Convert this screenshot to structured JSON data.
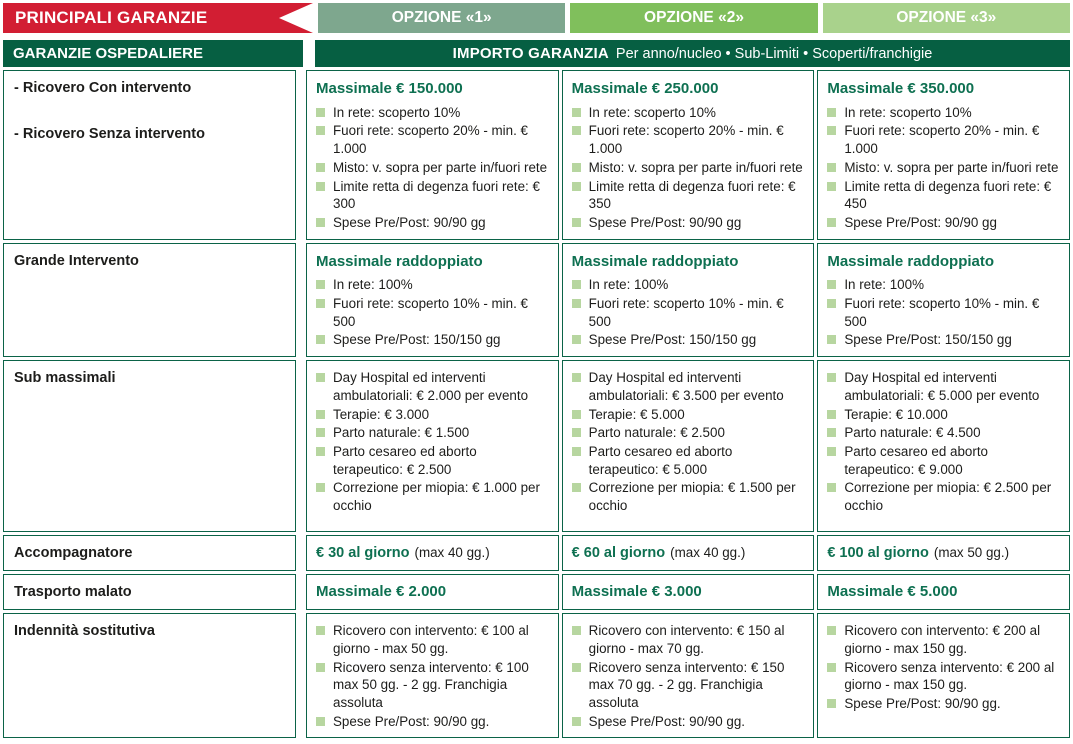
{
  "colors": {
    "red": "#d21e33",
    "dark_green": "#065f42",
    "option1_green": "#7ea78e",
    "option2_green": "#80bf5c",
    "option3_green": "#a9d28c",
    "title_green": "#0e7051",
    "bullet_square_green": "#b7d6a0",
    "border_green": "#0b6347"
  },
  "header": {
    "main_label": "PRINCIPALI GARANZIE",
    "options": [
      "OPZIONE «1»",
      "OPZIONE «2»",
      "OPZIONE «3»"
    ],
    "section_label": "GARANZIE OSPEDALIERE",
    "importo_title": "IMPORTO GARANZIA",
    "importo_subtitle": "Per anno/nucleo • Sub-Limiti • Scoperti/franchigie"
  },
  "rows": [
    {
      "label_lines": [
        "- Ricovero Con intervento",
        "- Ricovero Senza intervento"
      ],
      "cells": [
        {
          "title": "Massimale € 150.000",
          "bullets": [
            "In rete: scoperto 10%",
            "Fuori rete: scoperto 20% - min. € 1.000",
            "Misto: v. sopra per parte in/fuori rete",
            "Limite retta di degenza fuori rete: € 300",
            "Spese Pre/Post: 90/90 gg"
          ]
        },
        {
          "title": "Massimale € 250.000",
          "bullets": [
            "In rete: scoperto 10%",
            "Fuori rete: scoperto 20% - min. € 1.000",
            "Misto: v. sopra per parte in/fuori rete",
            "Limite retta di degenza fuori rete: € 350",
            "Spese Pre/Post: 90/90 gg"
          ]
        },
        {
          "title": "Massimale € 350.000",
          "bullets": [
            "In rete: scoperto 10%",
            "Fuori rete: scoperto 20% - min. € 1.000",
            "Misto: v. sopra per parte in/fuori rete",
            "Limite retta di degenza fuori rete: € 450",
            "Spese Pre/Post: 90/90 gg"
          ]
        }
      ]
    },
    {
      "label_lines": [
        "Grande Intervento"
      ],
      "cells": [
        {
          "title": "Massimale raddoppiato",
          "bullets": [
            "In rete: 100%",
            "Fuori rete: scoperto 10% - min. € 500",
            "Spese Pre/Post: 150/150 gg"
          ]
        },
        {
          "title": "Massimale raddoppiato",
          "bullets": [
            "In rete: 100%",
            "Fuori rete: scoperto 10% - min. € 500",
            "Spese Pre/Post: 150/150 gg"
          ]
        },
        {
          "title": "Massimale raddoppiato",
          "bullets": [
            "In rete: 100%",
            "Fuori rete: scoperto 10% - min. € 500",
            "Spese Pre/Post: 150/150 gg"
          ]
        }
      ]
    },
    {
      "label_lines": [
        "Sub massimali"
      ],
      "cells": [
        {
          "bullets": [
            "Day Hospital ed interventi ambulatoriali: € 2.000 per evento",
            "Terapie: € 3.000",
            "Parto naturale: € 1.500",
            "Parto cesareo ed aborto terapeutico: € 2.500",
            "Correzione per miopia: € 1.000 per occhio"
          ]
        },
        {
          "bullets": [
            "Day Hospital ed interventi ambulatoriali: € 3.500 per evento",
            "Terapie: € 5.000",
            "Parto naturale: € 2.500",
            "Parto cesareo ed aborto terapeutico: € 5.000",
            "Correzione per miopia: € 1.500 per occhio"
          ]
        },
        {
          "bullets": [
            "Day Hospital ed interventi ambulatoriali: € 5.000 per evento",
            "Terapie: € 10.000",
            "Parto naturale: € 4.500",
            "Parto cesareo ed aborto terapeutico: € 9.000",
            "Correzione per miopia: € 2.500 per occhio"
          ]
        }
      ]
    },
    {
      "label_lines": [
        "Accompagnatore"
      ],
      "cells": [
        {
          "amount": "€ 30 al giorno",
          "note": "(max 40 gg.)"
        },
        {
          "amount": "€ 60 al giorno",
          "note": "(max 40 gg.)"
        },
        {
          "amount": "€ 100 al giorno",
          "note": "(max 50 gg.)"
        }
      ]
    },
    {
      "label_lines": [
        "Trasporto malato"
      ],
      "cells": [
        {
          "title": "Massimale € 2.000"
        },
        {
          "title": "Massimale € 3.000"
        },
        {
          "title": "Massimale € 5.000"
        }
      ]
    },
    {
      "label_lines": [
        "Indennità sostitutiva"
      ],
      "cells": [
        {
          "bullets": [
            "Ricovero con intervento: € 100 al giorno - max 50 gg.",
            "Ricovero senza intervento: € 100 max 50 gg. - 2 gg. Franchigia assoluta",
            "Spese Pre/Post: 90/90 gg."
          ]
        },
        {
          "bullets": [
            "Ricovero con intervento: € 150 al giorno - max 70 gg.",
            "Ricovero senza intervento: € 150 max 70 gg. - 2 gg. Franchigia assoluta",
            "Spese Pre/Post: 90/90 gg."
          ]
        },
        {
          "bullets": [
            "Ricovero con intervento: € 200 al giorno - max 150 gg.",
            "Ricovero senza intervento: € 200 al giorno - max 150 gg.",
            "Spese Pre/Post: 90/90 gg."
          ]
        }
      ]
    }
  ]
}
